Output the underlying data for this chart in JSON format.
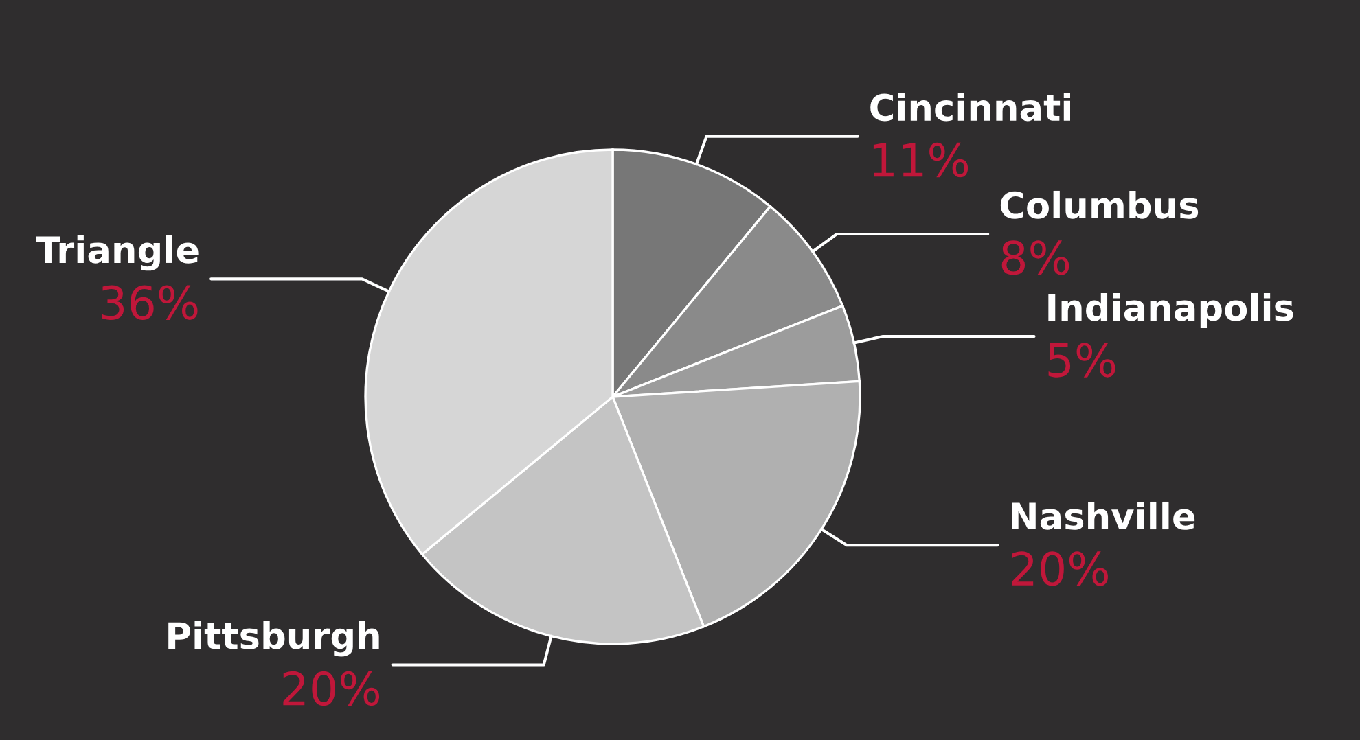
{
  "chart_data": {
    "type": "pie",
    "categories": [
      "Cincinnati",
      "Columbus",
      "Indianapolis",
      "Nashville",
      "Pittsburgh",
      "Triangle"
    ],
    "values": [
      11,
      8,
      5,
      20,
      20,
      36
    ],
    "value_labels": [
      "11%",
      "8%",
      "5%",
      "20%",
      "20%",
      "36%"
    ],
    "colors": [
      "#777777",
      "#8a8a8a",
      "#9c9c9c",
      "#b0b0b0",
      "#c4c4c4",
      "#d6d6d6"
    ]
  }
}
